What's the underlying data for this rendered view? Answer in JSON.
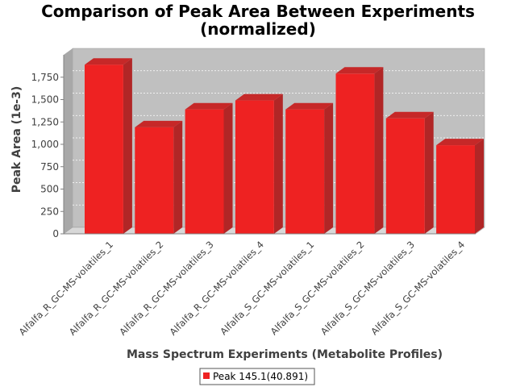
{
  "chart_data": {
    "type": "bar",
    "title": [
      "Comparison of Peak Area Between Experiments",
      "(normalized)"
    ],
    "xlabel": "Mass Spectrum Experiments (Metabolite Profiles)",
    "ylabel": "Peak Area (1e-3)",
    "ylim": [
      0,
      2000
    ],
    "yticks": [
      0,
      250,
      500,
      750,
      1000,
      1250,
      1500,
      1750
    ],
    "ytick_labels": [
      "0",
      "250",
      "500",
      "750",
      "1,000",
      "1,250",
      "1,500",
      "1,750"
    ],
    "grid": true,
    "legend_position": "bottom",
    "categories": [
      "Alfalfa_R_GC-MS-volatiles_1",
      "Alfalfa_R_GC-MS-volatiles_2",
      "Alfalfa_R_GC-MS-volatiles_3",
      "Alfalfa_R_GC-MS-volatiles_4",
      "Alfalfa_S_GC-MS-volatiles_1",
      "Alfalfa_S_GC-MS-volatiles_2",
      "Alfalfa_S_GC-MS-volatiles_3",
      "Alfalfa_S_GC-MS-volatiles_4"
    ],
    "series": [
      {
        "name": "Peak 145.1(40.891)",
        "color": "#ee2222",
        "values": [
          1890,
          1190,
          1390,
          1490,
          1390,
          1790,
          1290,
          990
        ]
      }
    ]
  },
  "colors": {
    "plot_background": "#c0c0c0",
    "bar_face": "#ee2222",
    "bar_side": "#b12626",
    "bar_top": "#c62828",
    "gridline": "#ffffff"
  }
}
